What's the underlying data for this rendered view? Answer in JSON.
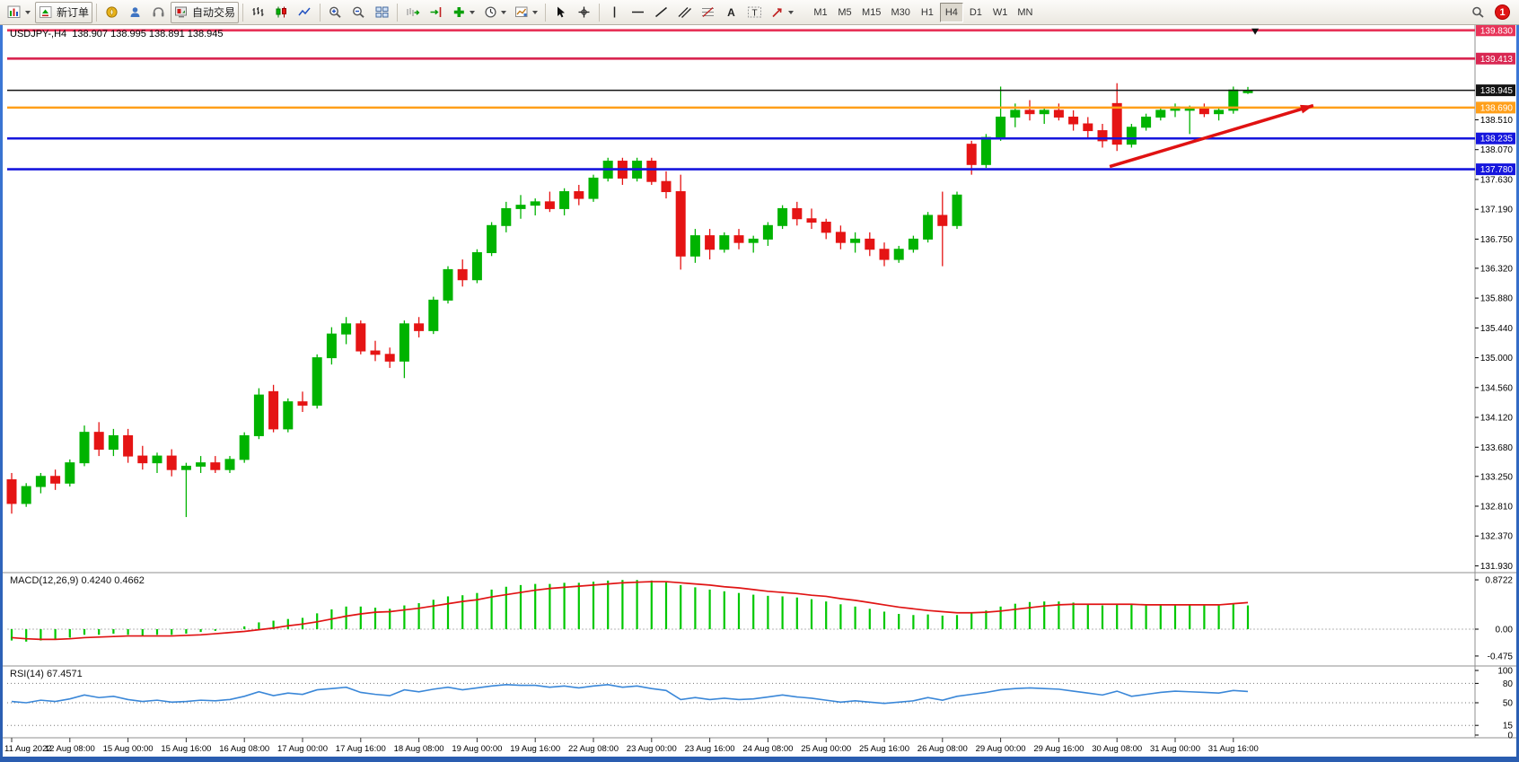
{
  "toolbar": {
    "new_order_label": "新订单",
    "autotrading_label": "自动交易",
    "timeframes": [
      "M1",
      "M5",
      "M15",
      "M30",
      "H1",
      "H4",
      "D1",
      "W1",
      "MN"
    ],
    "active_timeframe": "H4",
    "notification_count": "1"
  },
  "chart": {
    "symbol_header": "USDJPY-,H4  138.907 138.995 138.891 138.945",
    "level_lines": [
      {
        "label": "139.830",
        "value": 139.83,
        "color": "#e73358",
        "width": 2.8
      },
      {
        "label": "139.413",
        "value": 139.413,
        "color": "#d92752",
        "width": 2.8
      },
      {
        "label": "138.945",
        "value": 138.945,
        "color": "#141414",
        "width": 1.6
      },
      {
        "label": "138.690",
        "value": 138.69,
        "color": "#ff9f1a",
        "width": 2.6
      },
      {
        "label": "138.235",
        "value": 138.235,
        "color": "#1616dd",
        "width": 2.6
      },
      {
        "label": "137.780",
        "value": 137.78,
        "color": "#1616dd",
        "width": 2.6
      }
    ],
    "axis_labels": [
      {
        "text": "138.510",
        "value": 138.51
      },
      {
        "text": "138.070",
        "value": 138.07
      },
      {
        "text": "137.630",
        "value": 137.63
      },
      {
        "text": "137.190",
        "value": 137.19
      },
      {
        "text": "136.750",
        "value": 136.75
      },
      {
        "text": "136.320",
        "value": 136.32
      },
      {
        "text": "135.880",
        "value": 135.88
      },
      {
        "text": "135.440",
        "value": 135.44
      },
      {
        "text": "135.000",
        "value": 135.0
      },
      {
        "text": "134.560",
        "value": 134.56
      },
      {
        "text": "134.120",
        "value": 134.12
      },
      {
        "text": "133.680",
        "value": 133.68
      },
      {
        "text": "133.250",
        "value": 133.25
      },
      {
        "text": "132.810",
        "value": 132.81
      },
      {
        "text": "132.370",
        "value": 132.37
      },
      {
        "text": "131.930",
        "value": 131.93
      }
    ],
    "trend_arrow": {
      "from": {
        "bar": 75.5,
        "price": 137.82
      },
      "to": {
        "bar": 89.5,
        "price": 138.72
      },
      "color": "#e01212"
    },
    "top_marker": {
      "bar": 85.5,
      "price": 139.83
    }
  },
  "chart_data": {
    "type": "candlestick",
    "title": "USDJPY- H4",
    "price_range": [
      131.83,
      139.88
    ],
    "bull_color": "#00b300",
    "bear_color": "#e51414",
    "label_every_n_bars": 4,
    "time_labels": [
      "11 Aug 2022",
      "12 Aug 08:00",
      "15 Aug 00:00",
      "15 Aug 16:00",
      "16 Aug 08:00",
      "17 Aug 00:00",
      "17 Aug 16:00",
      "18 Aug 08:00",
      "19 Aug 00:00",
      "19 Aug 16:00",
      "22 Aug 08:00",
      "23 Aug 00:00",
      "23 Aug 16:00",
      "24 Aug 08:00",
      "25 Aug 00:00",
      "25 Aug 16:00",
      "26 Aug 08:00",
      "29 Aug 00:00",
      "29 Aug 16:00",
      "30 Aug 08:00",
      "31 Aug 00:00",
      "31 Aug 16:00"
    ],
    "ohlc": [
      [
        133.2,
        133.3,
        132.7,
        132.85
      ],
      [
        132.85,
        133.15,
        132.8,
        133.1
      ],
      [
        133.1,
        133.3,
        133.0,
        133.25
      ],
      [
        133.25,
        133.35,
        133.05,
        133.15
      ],
      [
        133.15,
        133.5,
        133.1,
        133.45
      ],
      [
        133.45,
        134.0,
        133.4,
        133.9
      ],
      [
        133.9,
        134.05,
        133.55,
        133.65
      ],
      [
        133.65,
        133.95,
        133.55,
        133.85
      ],
      [
        133.85,
        133.95,
        133.45,
        133.55
      ],
      [
        133.55,
        133.7,
        133.35,
        133.45
      ],
      [
        133.45,
        133.6,
        133.3,
        133.55
      ],
      [
        133.55,
        133.65,
        133.25,
        133.35
      ],
      [
        133.35,
        133.45,
        132.65,
        133.4
      ],
      [
        133.4,
        133.55,
        133.3,
        133.45
      ],
      [
        133.45,
        133.55,
        133.3,
        133.35
      ],
      [
        133.35,
        133.55,
        133.3,
        133.5
      ],
      [
        133.5,
        133.9,
        133.45,
        133.85
      ],
      [
        133.85,
        134.55,
        133.8,
        134.45
      ],
      [
        134.5,
        134.6,
        133.9,
        133.95
      ],
      [
        133.95,
        134.4,
        133.9,
        134.35
      ],
      [
        134.35,
        134.5,
        134.2,
        134.3
      ],
      [
        134.3,
        135.05,
        134.25,
        135.0
      ],
      [
        135.0,
        135.45,
        134.9,
        135.35
      ],
      [
        135.35,
        135.6,
        135.2,
        135.5
      ],
      [
        135.5,
        135.55,
        135.05,
        135.1
      ],
      [
        135.1,
        135.25,
        134.95,
        135.05
      ],
      [
        135.05,
        135.15,
        134.85,
        134.95
      ],
      [
        134.95,
        135.55,
        134.7,
        135.5
      ],
      [
        135.5,
        135.6,
        135.3,
        135.4
      ],
      [
        135.4,
        135.9,
        135.35,
        135.85
      ],
      [
        135.85,
        136.35,
        135.8,
        136.3
      ],
      [
        136.3,
        136.45,
        136.05,
        136.15
      ],
      [
        136.15,
        136.6,
        136.1,
        136.55
      ],
      [
        136.55,
        137.0,
        136.5,
        136.95
      ],
      [
        136.95,
        137.3,
        136.85,
        137.2
      ],
      [
        137.2,
        137.4,
        137.05,
        137.25
      ],
      [
        137.25,
        137.35,
        137.1,
        137.3
      ],
      [
        137.3,
        137.45,
        137.15,
        137.2
      ],
      [
        137.2,
        137.5,
        137.1,
        137.45
      ],
      [
        137.45,
        137.55,
        137.25,
        137.35
      ],
      [
        137.35,
        137.7,
        137.3,
        137.65
      ],
      [
        137.65,
        137.95,
        137.6,
        137.9
      ],
      [
        137.9,
        137.95,
        137.55,
        137.65
      ],
      [
        137.65,
        137.95,
        137.6,
        137.9
      ],
      [
        137.9,
        137.95,
        137.55,
        137.6
      ],
      [
        137.6,
        137.75,
        137.35,
        137.45
      ],
      [
        137.45,
        137.7,
        136.3,
        136.5
      ],
      [
        136.5,
        136.9,
        136.4,
        136.8
      ],
      [
        136.8,
        136.9,
        136.45,
        136.6
      ],
      [
        136.6,
        136.85,
        136.55,
        136.8
      ],
      [
        136.8,
        136.9,
        136.6,
        136.7
      ],
      [
        136.7,
        136.8,
        136.55,
        136.75
      ],
      [
        136.75,
        137.0,
        136.65,
        136.95
      ],
      [
        136.95,
        137.25,
        136.9,
        137.2
      ],
      [
        137.2,
        137.3,
        136.95,
        137.05
      ],
      [
        137.05,
        137.2,
        136.9,
        137.0
      ],
      [
        137.0,
        137.05,
        136.75,
        136.85
      ],
      [
        136.85,
        136.95,
        136.6,
        136.7
      ],
      [
        136.7,
        136.85,
        136.55,
        136.75
      ],
      [
        136.75,
        136.85,
        136.5,
        136.6
      ],
      [
        136.6,
        136.7,
        136.35,
        136.45
      ],
      [
        136.45,
        136.65,
        136.4,
        136.6
      ],
      [
        136.6,
        136.8,
        136.55,
        136.75
      ],
      [
        136.75,
        137.15,
        136.7,
        137.1
      ],
      [
        137.1,
        137.45,
        136.35,
        136.95
      ],
      [
        136.95,
        137.45,
        136.9,
        137.4
      ],
      [
        138.15,
        138.2,
        137.7,
        137.85
      ],
      [
        137.85,
        138.3,
        137.8,
        138.25
      ],
      [
        138.25,
        139.0,
        138.2,
        138.55
      ],
      [
        138.55,
        138.75,
        138.4,
        138.65
      ],
      [
        138.65,
        138.8,
        138.5,
        138.6
      ],
      [
        138.6,
        138.7,
        138.45,
        138.65
      ],
      [
        138.65,
        138.75,
        138.5,
        138.55
      ],
      [
        138.55,
        138.65,
        138.35,
        138.45
      ],
      [
        138.45,
        138.55,
        138.25,
        138.35
      ],
      [
        138.35,
        138.45,
        138.1,
        138.2
      ],
      [
        138.75,
        139.05,
        138.05,
        138.15
      ],
      [
        138.15,
        138.45,
        138.1,
        138.4
      ],
      [
        138.4,
        138.6,
        138.35,
        138.55
      ],
      [
        138.55,
        138.7,
        138.5,
        138.65
      ],
      [
        138.65,
        138.75,
        138.55,
        138.7
      ],
      [
        138.65,
        138.72,
        138.3,
        138.68
      ],
      [
        138.68,
        138.75,
        138.55,
        138.6
      ],
      [
        138.6,
        138.7,
        138.5,
        138.65
      ],
      [
        138.65,
        139.0,
        138.6,
        138.95
      ],
      [
        138.91,
        138.995,
        138.891,
        138.945
      ]
    ],
    "macd": {
      "name": "MACD(12,26,9)",
      "value_main": "0.4240",
      "value_signal": "0.4662",
      "histogram_color": "#00c800",
      "signal_color": "#e01414",
      "scale": [
        {
          "text": "0.8722",
          "value": 0.8722
        },
        {
          "text": "0.00",
          "value": 0
        },
        {
          "text": "-0.475",
          "value": -0.475
        }
      ],
      "histogram": [
        -0.2,
        -0.22,
        -0.2,
        -0.18,
        -0.15,
        -0.1,
        -0.1,
        -0.08,
        -0.1,
        -0.12,
        -0.1,
        -0.1,
        -0.08,
        -0.05,
        -0.03,
        0.0,
        0.05,
        0.12,
        0.15,
        0.18,
        0.2,
        0.28,
        0.35,
        0.4,
        0.4,
        0.38,
        0.36,
        0.42,
        0.46,
        0.52,
        0.58,
        0.6,
        0.64,
        0.7,
        0.75,
        0.78,
        0.8,
        0.8,
        0.82,
        0.82,
        0.84,
        0.86,
        0.87,
        0.87,
        0.86,
        0.83,
        0.78,
        0.74,
        0.7,
        0.67,
        0.64,
        0.61,
        0.59,
        0.58,
        0.56,
        0.53,
        0.49,
        0.44,
        0.4,
        0.36,
        0.31,
        0.27,
        0.25,
        0.26,
        0.24,
        0.25,
        0.28,
        0.33,
        0.4,
        0.45,
        0.48,
        0.49,
        0.49,
        0.47,
        0.45,
        0.42,
        0.45,
        0.43,
        0.42,
        0.42,
        0.43,
        0.43,
        0.42,
        0.42,
        0.44,
        0.42
      ],
      "signal": [
        -0.15,
        -0.17,
        -0.18,
        -0.18,
        -0.17,
        -0.15,
        -0.14,
        -0.13,
        -0.12,
        -0.12,
        -0.12,
        -0.12,
        -0.11,
        -0.1,
        -0.08,
        -0.06,
        -0.04,
        -0.01,
        0.02,
        0.06,
        0.09,
        0.13,
        0.18,
        0.23,
        0.27,
        0.3,
        0.31,
        0.34,
        0.37,
        0.41,
        0.45,
        0.49,
        0.52,
        0.57,
        0.61,
        0.65,
        0.69,
        0.72,
        0.74,
        0.76,
        0.78,
        0.8,
        0.82,
        0.83,
        0.84,
        0.84,
        0.82,
        0.8,
        0.78,
        0.75,
        0.73,
        0.7,
        0.67,
        0.65,
        0.63,
        0.6,
        0.58,
        0.54,
        0.51,
        0.47,
        0.43,
        0.39,
        0.36,
        0.33,
        0.31,
        0.29,
        0.29,
        0.3,
        0.32,
        0.35,
        0.38,
        0.41,
        0.43,
        0.44,
        0.44,
        0.44,
        0.44,
        0.44,
        0.43,
        0.43,
        0.43,
        0.43,
        0.43,
        0.43,
        0.45,
        0.47
      ]
    },
    "rsi": {
      "name": "RSI(14)",
      "value": "67.4571",
      "color": "#3a87d8",
      "levels": [
        80,
        50,
        15
      ],
      "scale": [
        {
          "text": "100",
          "value": 100
        },
        {
          "text": "80",
          "value": 80
        },
        {
          "text": "50",
          "value": 50
        },
        {
          "text": "15",
          "value": 15
        },
        {
          "text": "0",
          "value": 0
        }
      ],
      "values": [
        52,
        50,
        54,
        52,
        56,
        62,
        58,
        60,
        55,
        52,
        54,
        51,
        52,
        54,
        53,
        55,
        60,
        67,
        61,
        65,
        63,
        70,
        72,
        74,
        66,
        63,
        61,
        70,
        67,
        71,
        74,
        70,
        73,
        76,
        78,
        77,
        77,
        74,
        76,
        73,
        76,
        78,
        74,
        76,
        72,
        69,
        55,
        58,
        55,
        57,
        55,
        56,
        59,
        62,
        59,
        57,
        54,
        51,
        53,
        51,
        49,
        51,
        53,
        58,
        54,
        60,
        63,
        66,
        70,
        72,
        73,
        72,
        71,
        68,
        65,
        62,
        68,
        60,
        63,
        66,
        68,
        67,
        66,
        65,
        69,
        67.5
      ]
    }
  }
}
